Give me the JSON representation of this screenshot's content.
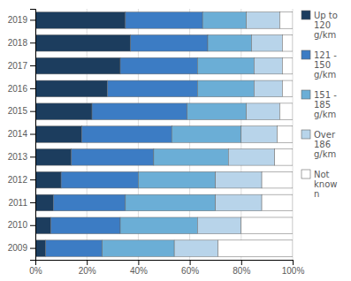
{
  "chart_data": {
    "type": "bar",
    "orientation": "horizontal",
    "stacked": true,
    "categories": [
      "2009",
      "2010",
      "2011",
      "2012",
      "2013",
      "2014",
      "2015",
      "2016",
      "2017",
      "2018",
      "2019"
    ],
    "series": [
      {
        "name": "Up to\n120\ng/km",
        "color": "#1c3d5e",
        "values": [
          4,
          6,
          7,
          10,
          14,
          18,
          22,
          28,
          33,
          37,
          35
        ]
      },
      {
        "name": "121 -\n150\ng/km",
        "color": "#3c7cc4",
        "values": [
          22,
          27,
          28,
          30,
          32,
          35,
          37,
          35,
          30,
          30,
          30
        ]
      },
      {
        "name": "151 -\n185\ng/km",
        "color": "#6baed6",
        "values": [
          28,
          30,
          35,
          30,
          29,
          27,
          23,
          22,
          22,
          17,
          17
        ]
      },
      {
        "name": "Over\n186\ng/km",
        "color": "#b8d4ea",
        "values": [
          17,
          17,
          18,
          18,
          18,
          14,
          13,
          11,
          11,
          12,
          13
        ]
      },
      {
        "name": "Not\nknow\nn",
        "color": "#ffffff",
        "values": [
          29,
          20,
          12,
          12,
          7,
          6,
          5,
          4,
          4,
          4,
          5
        ]
      }
    ],
    "xlim": [
      0,
      100
    ],
    "xticks": [
      {
        "value": 0,
        "label": "0%"
      },
      {
        "value": 20,
        "label": "20%"
      },
      {
        "value": 40,
        "label": "40%"
      },
      {
        "value": 60,
        "label": "60%"
      },
      {
        "value": 80,
        "label": "80%"
      },
      {
        "value": 100,
        "label": "100%"
      }
    ],
    "grid": true,
    "legend": "right"
  }
}
